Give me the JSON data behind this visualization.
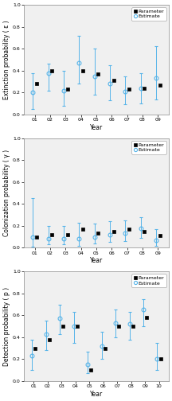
{
  "panel1": {
    "ylabel": "Extinction probability ( ε )",
    "xlabel": "Year",
    "years": [
      "01",
      "02",
      "03",
      "04",
      "05",
      "06",
      "07",
      "08",
      "09"
    ],
    "param_y": [
      0.28,
      0.4,
      0.23,
      0.4,
      0.37,
      0.31,
      0.23,
      0.24,
      0.27
    ],
    "est_y": [
      0.2,
      0.38,
      0.22,
      0.47,
      0.35,
      0.28,
      0.21,
      0.24,
      0.33
    ],
    "est_low": [
      0.05,
      0.22,
      0.08,
      0.28,
      0.18,
      0.13,
      0.09,
      0.1,
      0.14
    ],
    "est_high": [
      0.38,
      0.46,
      0.4,
      0.72,
      0.6,
      0.45,
      0.35,
      0.38,
      0.62
    ]
  },
  "panel2": {
    "ylabel": "Colonization probability ( γ )",
    "xlabel": "Year",
    "years": [
      "01",
      "02",
      "03",
      "04",
      "05",
      "06",
      "07",
      "08",
      "09"
    ],
    "param_y": [
      0.1,
      0.12,
      0.12,
      0.17,
      0.13,
      0.15,
      0.17,
      0.15,
      0.11
    ],
    "est_y": [
      0.1,
      0.08,
      0.08,
      0.08,
      0.1,
      0.12,
      0.13,
      0.18,
      0.07
    ],
    "est_low": [
      0.01,
      0.03,
      0.03,
      0.02,
      0.04,
      0.05,
      0.06,
      0.09,
      0.02
    ],
    "est_high": [
      0.45,
      0.2,
      0.2,
      0.23,
      0.22,
      0.24,
      0.25,
      0.28,
      0.17
    ]
  },
  "panel3": {
    "ylabel": "Detection probability ( p )",
    "xlabel": "Year",
    "years": [
      "01",
      "02",
      "03",
      "04",
      "05",
      "06",
      "07",
      "08",
      "09",
      "10"
    ],
    "param_y": [
      0.3,
      0.38,
      0.5,
      0.5,
      0.1,
      0.3,
      0.5,
      0.5,
      0.58,
      0.2
    ],
    "est_y": [
      0.23,
      0.43,
      0.57,
      0.5,
      0.15,
      0.32,
      0.53,
      0.52,
      0.65,
      0.2
    ],
    "est_low": [
      0.1,
      0.28,
      0.43,
      0.35,
      0.07,
      0.2,
      0.4,
      0.38,
      0.5,
      0.1
    ],
    "est_high": [
      0.38,
      0.55,
      0.7,
      0.63,
      0.27,
      0.45,
      0.65,
      0.63,
      0.75,
      0.35
    ]
  },
  "ylim": [
    0.0,
    1.0
  ],
  "yticks": [
    0.0,
    0.2,
    0.4,
    0.6,
    0.8,
    1.0
  ],
  "param_color": "#000000",
  "est_color": "#56b4e9",
  "param_marker": "s",
  "est_marker": "o",
  "param_markersize": 2.8,
  "est_markersize": 3.5,
  "legend_fontsize": 4.5,
  "tick_fontsize": 4.5,
  "label_fontsize": 5.5,
  "bg_color": "#ffffff",
  "ax_bg_color": "#f0f0f0"
}
